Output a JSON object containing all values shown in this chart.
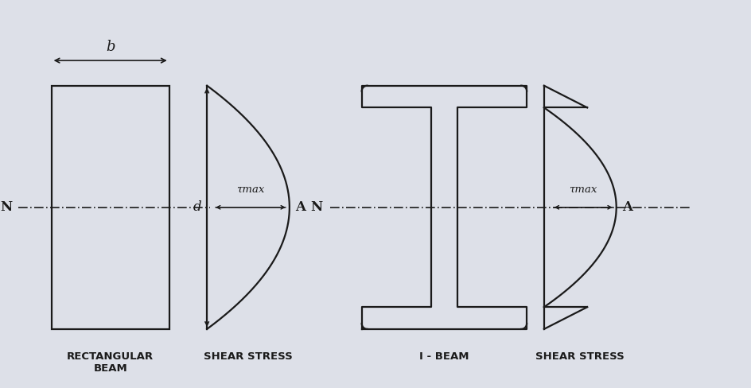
{
  "bg_color": "#dde0e8",
  "line_color": "#1a1a1a",
  "fig_width": 9.44,
  "fig_height": 4.88,
  "rect_beam_label": "RECTANGULAR\nBEAM",
  "rect_shear_label": "SHEAR STRESS",
  "ibeam_label": "I - BEAM",
  "ibeam_shear_label": "SHEAR STRESS",
  "label_b": "b",
  "label_d": "d",
  "label_N1": "N",
  "label_A1": "A",
  "label_tau1": "τmax",
  "label_N2": "N",
  "label_A2": "A",
  "label_tau2": "τmax"
}
